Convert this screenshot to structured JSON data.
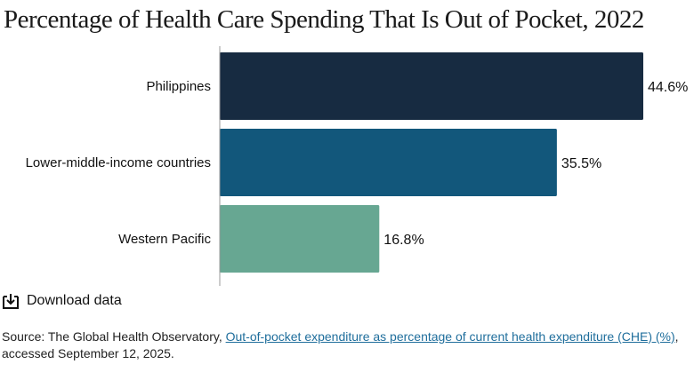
{
  "title": "Percentage of Health Care Spending That Is Out of Pocket, 2022",
  "chart_data": {
    "type": "bar",
    "orientation": "horizontal",
    "categories": [
      "Philippines",
      "Lower-middle-income countries",
      "Western Pacific"
    ],
    "values": [
      44.6,
      35.5,
      16.8
    ],
    "value_labels": [
      "44.6%",
      "35.5%",
      "16.8%"
    ],
    "colors": [
      "#172b41",
      "#12577b",
      "#67a792"
    ],
    "xlim": [
      0,
      44.6
    ],
    "grid": false,
    "legend": "none"
  },
  "download": {
    "label": "Download data",
    "icon": "download-icon"
  },
  "source": {
    "prefix": "Source: The Global Health Observatory, ",
    "link_text": "Out-of-pocket expenditure as percentage of current health expenditure (CHE) (%)",
    "suffix": ", accessed September 12, 2025."
  }
}
